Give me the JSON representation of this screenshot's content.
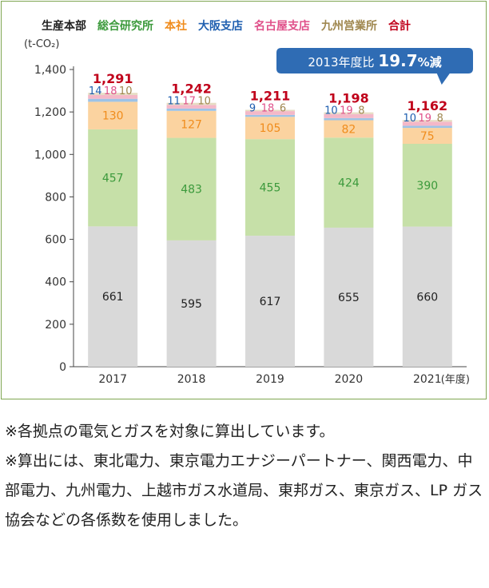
{
  "chart_data": {
    "type": "bar",
    "stacked": true,
    "categories": [
      "2017",
      "2018",
      "2019",
      "2020",
      "2021"
    ],
    "x_unit_label": "(年度)",
    "ylabel": "(t-CO₂)",
    "ylim": [
      0,
      1400
    ],
    "yticks": [
      "0",
      "200",
      "400",
      "600",
      "800",
      "1,000",
      "1,200",
      "1,400"
    ],
    "series": [
      {
        "name": "生産本部",
        "color": "#d9d9d9",
        "label_color": "#222222",
        "values": [
          661,
          595,
          617,
          655,
          660
        ]
      },
      {
        "name": "総合研究所",
        "color": "#c6e0a8",
        "label_color": "#3c9a3c",
        "values": [
          457,
          483,
          455,
          424,
          390
        ]
      },
      {
        "name": "本社",
        "color": "#fbd3a0",
        "label_color": "#f08c1c",
        "values": [
          130,
          127,
          105,
          82,
          75
        ]
      },
      {
        "name": "大阪支店",
        "color": "#9dc3e6",
        "label_color": "#1f5fb0",
        "values": [
          14,
          11,
          9,
          10,
          10
        ]
      },
      {
        "name": "名古屋支店",
        "color": "#f4b8c8",
        "label_color": "#e0508a",
        "values": [
          18,
          17,
          18,
          19,
          19
        ]
      },
      {
        "name": "九州営業所",
        "color": "#e6dcc2",
        "label_color": "#a08850",
        "values": [
          10,
          10,
          6,
          8,
          8
        ]
      }
    ],
    "totals": {
      "name": "合計",
      "label_color": "#c0001a",
      "values": [
        "1,291",
        "1,242",
        "1,211",
        "1,198",
        "1,162"
      ]
    },
    "callout": {
      "prefix": "2013年度比",
      "value": "19.7",
      "suffix": "%減",
      "bg": "#2f6cb4"
    }
  },
  "notes": [
    "※各拠点の電気とガスを対象に算出しています。",
    "※算出には、東北電力、東京電力エナジーパートナー、関西電力、中部電力、九州電力、上越市ガス水道局、東邦ガス、東京ガス、LP ガス協会などの各係数を使用しました。"
  ]
}
